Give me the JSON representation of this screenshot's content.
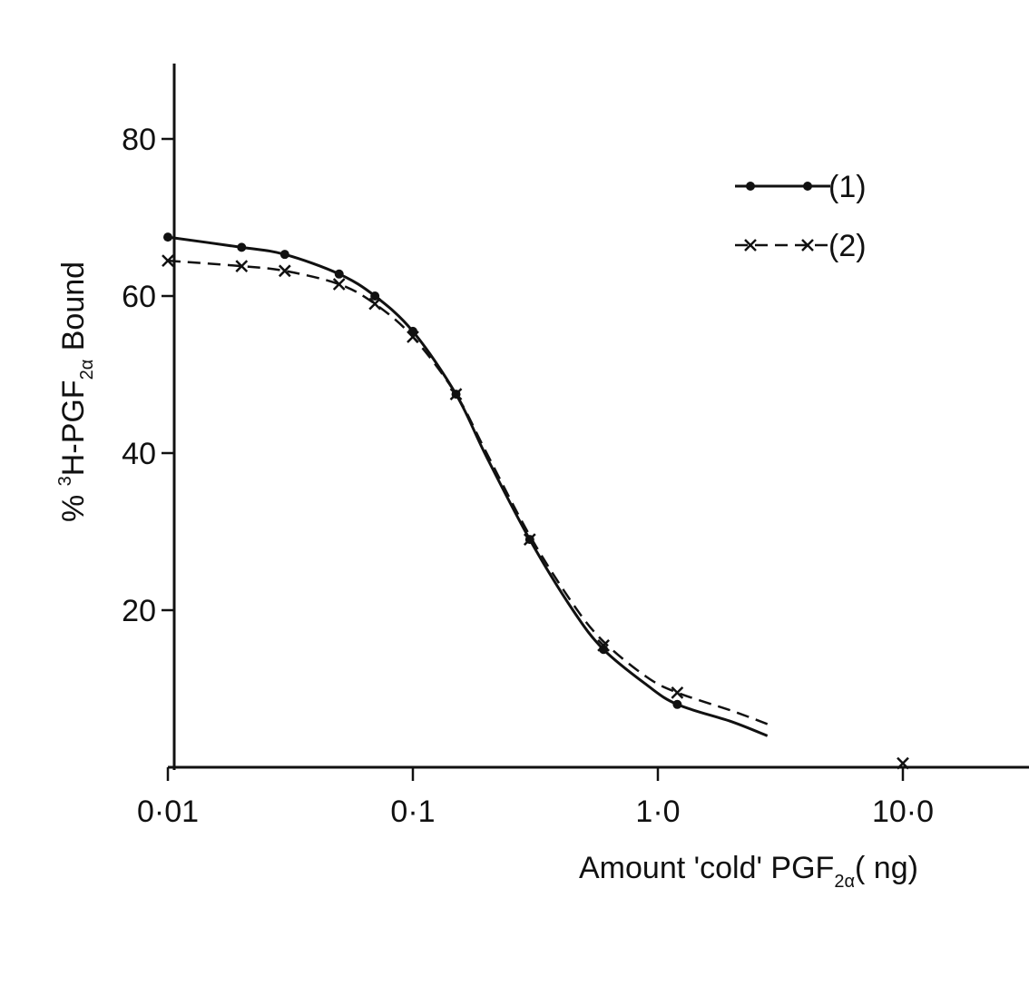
{
  "chart_data": {
    "type": "line",
    "x_scale": "log",
    "xlim": [
      0.01,
      35
    ],
    "ylim": [
      0,
      90
    ],
    "grid": false,
    "legend_position": "top-right",
    "xlabel": "Amount   'cold' PGF",
    "xlabel_sub": "2α",
    "xlabel_unit": "( ng)",
    "ylabel_pre": "% ",
    "ylabel_sup": "3",
    "ylabel_main": "H-PGF",
    "ylabel_sub": "2α",
    "ylabel_post": " Bound",
    "x_ticks": [
      {
        "value": 0.01,
        "label": "0·01"
      },
      {
        "value": 0.1,
        "label": "0·1"
      },
      {
        "value": 1.0,
        "label": "1·0"
      },
      {
        "value": 10.0,
        "label": "10·0"
      }
    ],
    "y_ticks": [
      {
        "value": 20,
        "label": "20"
      },
      {
        "value": 40,
        "label": "40"
      },
      {
        "value": 60,
        "label": "60"
      },
      {
        "value": 80,
        "label": "80"
      }
    ],
    "series": [
      {
        "name": "(1)",
        "marker": "dot",
        "line": "solid",
        "x": [
          0.01,
          0.02,
          0.03,
          0.05,
          0.07,
          0.1,
          0.15,
          0.3,
          0.6,
          1.2
        ],
        "y": [
          67.5,
          66.2,
          65.3,
          62.8,
          60.0,
          55.5,
          47.5,
          29.0,
          15.0,
          8.0
        ],
        "curve": {
          "x": [
            0.01,
            0.02,
            0.03,
            0.05,
            0.07,
            0.1,
            0.15,
            0.2,
            0.3,
            0.45,
            0.6,
            0.9,
            1.2,
            2.0,
            2.8
          ],
          "y": [
            67.5,
            66.2,
            65.3,
            62.8,
            60.0,
            55.5,
            47.5,
            39.5,
            29.0,
            20.0,
            15.0,
            10.5,
            8.0,
            5.8,
            4.0
          ]
        }
      },
      {
        "name": "(2)",
        "marker": "x",
        "line": "dashed",
        "x": [
          0.01,
          0.02,
          0.03,
          0.05,
          0.07,
          0.1,
          0.15,
          0.3,
          0.6,
          1.2,
          10.0
        ],
        "y": [
          64.5,
          63.8,
          63.2,
          61.5,
          59.0,
          54.8,
          47.5,
          29.0,
          15.5,
          9.5,
          0.5
        ],
        "curve": {
          "x": [
            0.01,
            0.02,
            0.03,
            0.05,
            0.07,
            0.1,
            0.15,
            0.2,
            0.3,
            0.45,
            0.6,
            0.9,
            1.2,
            2.0,
            2.8
          ],
          "y": [
            64.5,
            63.8,
            63.2,
            61.5,
            59.0,
            54.8,
            47.5,
            40.0,
            29.5,
            20.8,
            16.0,
            11.5,
            9.5,
            7.2,
            5.5
          ]
        }
      }
    ]
  }
}
